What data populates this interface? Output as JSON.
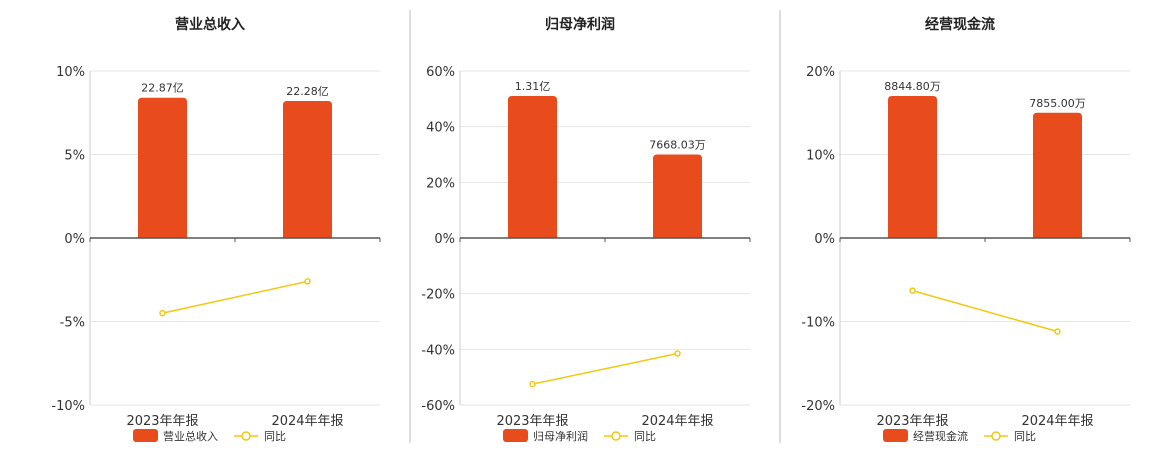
{
  "colors": {
    "bar": "#E84C1C",
    "line": "#F2C811",
    "grid": "#e6e6e6",
    "axis": "#555555",
    "divider": "#bbbbbb"
  },
  "chart_data": [
    {
      "type": "bar",
      "title": "营业总收入",
      "categories": [
        "2023年年报",
        "2024年年报"
      ],
      "series": [
        {
          "name": "营业总收入",
          "type": "bar",
          "values": [
            8.4,
            8.2
          ],
          "labels": [
            "22.87亿",
            "22.28亿"
          ]
        },
        {
          "name": "同比",
          "type": "line",
          "values": [
            -4.5,
            -2.6
          ]
        }
      ],
      "ylim": [
        -10,
        10
      ],
      "yticks": [
        "10%",
        "5%",
        "0%",
        "-5%",
        "-10%"
      ],
      "grid": true,
      "legend": "bottom"
    },
    {
      "type": "bar",
      "title": "归母净利润",
      "categories": [
        "2023年年报",
        "2024年年报"
      ],
      "series": [
        {
          "name": "归母净利润",
          "type": "bar",
          "values": [
            51,
            30
          ],
          "labels": [
            "1.31亿",
            "7668.03万"
          ]
        },
        {
          "name": "同比",
          "type": "line",
          "values": [
            -52.5,
            -41.5
          ]
        }
      ],
      "ylim": [
        -60,
        60
      ],
      "yticks": [
        "60%",
        "40%",
        "20%",
        "0%",
        "-20%",
        "-40%",
        "-60%"
      ],
      "grid": true,
      "legend": "bottom"
    },
    {
      "type": "bar",
      "title": "经营现金流",
      "categories": [
        "2023年年报",
        "2024年年报"
      ],
      "series": [
        {
          "name": "经营现金流",
          "type": "bar",
          "values": [
            17,
            15
          ],
          "labels": [
            "8844.80万",
            "7855.00万"
          ]
        },
        {
          "name": "同比",
          "type": "line",
          "values": [
            -6.3,
            -11.2
          ]
        }
      ],
      "ylim": [
        -20,
        20
      ],
      "yticks": [
        "20%",
        "10%",
        "0%",
        "-10%",
        "-20%"
      ],
      "grid": true,
      "legend": "bottom"
    }
  ]
}
